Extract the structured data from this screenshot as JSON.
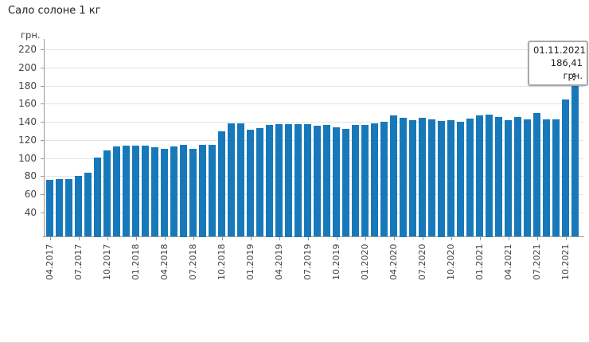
{
  "title": "Сало солоне 1 кг",
  "chart_data": {
    "type": "bar",
    "title": "Сало солоне 1 кг",
    "unit_label": "грн.",
    "xlabel": "",
    "ylabel": "грн.",
    "grid": true,
    "legend": null,
    "bar_color": "#1779ba",
    "axis_color": "#999999",
    "grid_color": "#e4e4e4",
    "ylim": [
      13,
      232
    ],
    "y_ticks": [
      40,
      60,
      80,
      100,
      120,
      140,
      160,
      180,
      200,
      220
    ],
    "x_tick_labels": [
      "04.2017",
      "07.2017",
      "10.2017",
      "01.2018",
      "04.2018",
      "07.2018",
      "10.2018",
      "01.2019",
      "04.2019",
      "07.2019",
      "10.2019",
      "01.2020",
      "04.2020",
      "07.2020",
      "10.2020",
      "01.2021",
      "04.2021",
      "07.2021",
      "10.2021"
    ],
    "categories": [
      "04.2017",
      "05.2017",
      "06.2017",
      "07.2017",
      "08.2017",
      "09.2017",
      "10.2017",
      "11.2017",
      "12.2017",
      "01.2018",
      "02.2018",
      "03.2018",
      "04.2018",
      "05.2018",
      "06.2018",
      "07.2018",
      "08.2018",
      "09.2018",
      "10.2018",
      "11.2018",
      "12.2018",
      "01.2019",
      "02.2019",
      "03.2019",
      "04.2019",
      "05.2019",
      "06.2019",
      "07.2019",
      "08.2019",
      "09.2019",
      "10.2019",
      "11.2019",
      "12.2019",
      "01.2020",
      "02.2020",
      "03.2020",
      "04.2020",
      "05.2020",
      "06.2020",
      "07.2020",
      "08.2020",
      "09.2020",
      "10.2020",
      "11.2020",
      "12.2020",
      "01.2021",
      "02.2021",
      "03.2021",
      "04.2021",
      "05.2021",
      "06.2021",
      "07.2021",
      "08.2021",
      "09.2021",
      "10.2021",
      "11.2021"
    ],
    "values": [
      75.5,
      77,
      77,
      80,
      84,
      100.5,
      108.5,
      113,
      113.5,
      113.5,
      113.5,
      112,
      110.5,
      113,
      115,
      110.5,
      115,
      114.5,
      129.5,
      138.5,
      138,
      131.5,
      133,
      137,
      137.5,
      137.5,
      137.5,
      137.5,
      136,
      136.5,
      134,
      132,
      136.5,
      136.5,
      138.5,
      140.5,
      147,
      145,
      141.5,
      144.5,
      143,
      141,
      142,
      140.5,
      144,
      147,
      148.5,
      145.5,
      142,
      145.5,
      142.5,
      149.5,
      143,
      143,
      165,
      186.41
    ],
    "tooltip": {
      "date": "01.11.2021",
      "value": "186,41 грн."
    }
  }
}
